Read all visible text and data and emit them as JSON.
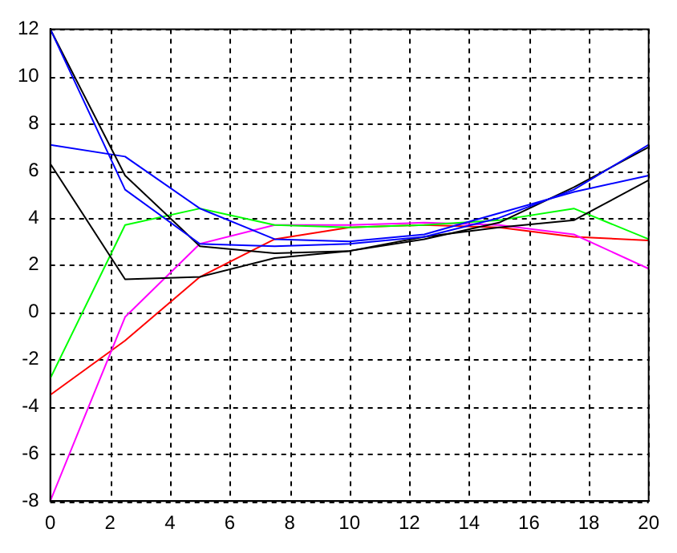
{
  "chart_data": {
    "type": "line",
    "x": [
      0,
      2.5,
      5,
      7.5,
      10,
      12.5,
      15,
      17.5,
      20
    ],
    "series": [
      {
        "color": "#0000ff",
        "values": [
          12,
          5.2,
          2.9,
          2.8,
          2.9,
          3.2,
          4.0,
          5.2,
          7.1
        ]
      },
      {
        "color": "#000000",
        "values": [
          12,
          5.8,
          2.8,
          2.5,
          2.6,
          3.1,
          3.8,
          5.3,
          7.0
        ]
      },
      {
        "color": "#0000ff",
        "values": [
          7.1,
          6.6,
          4.4,
          3.1,
          3.0,
          3.3,
          4.2,
          5.1,
          5.8
        ]
      },
      {
        "color": "#000000",
        "values": [
          6.3,
          1.4,
          1.5,
          2.3,
          2.6,
          3.2,
          3.6,
          3.9,
          5.6
        ]
      },
      {
        "color": "#00ff00",
        "values": [
          -2.8,
          3.7,
          4.4,
          3.7,
          3.6,
          3.7,
          3.9,
          4.4,
          3.1
        ]
      },
      {
        "color": "#ff00ff",
        "values": [
          -8,
          -0.2,
          2.9,
          3.7,
          3.7,
          3.8,
          3.7,
          3.3,
          1.85
        ]
      },
      {
        "color": "#ff0000",
        "values": [
          -3.5,
          -1.2,
          1.5,
          3.1,
          3.6,
          3.7,
          3.6,
          3.2,
          3.05
        ]
      }
    ],
    "xlim": [
      0,
      20
    ],
    "xticks": [
      0,
      2,
      4,
      6,
      8,
      10,
      12,
      14,
      16,
      18,
      20
    ],
    "ylim": [
      -8,
      12
    ],
    "yticks": [
      -8,
      -6,
      -4,
      -2,
      0,
      2,
      4,
      6,
      8,
      10,
      12
    ],
    "grid": true,
    "legend": false,
    "marker": "none",
    "line_style": "solid"
  }
}
